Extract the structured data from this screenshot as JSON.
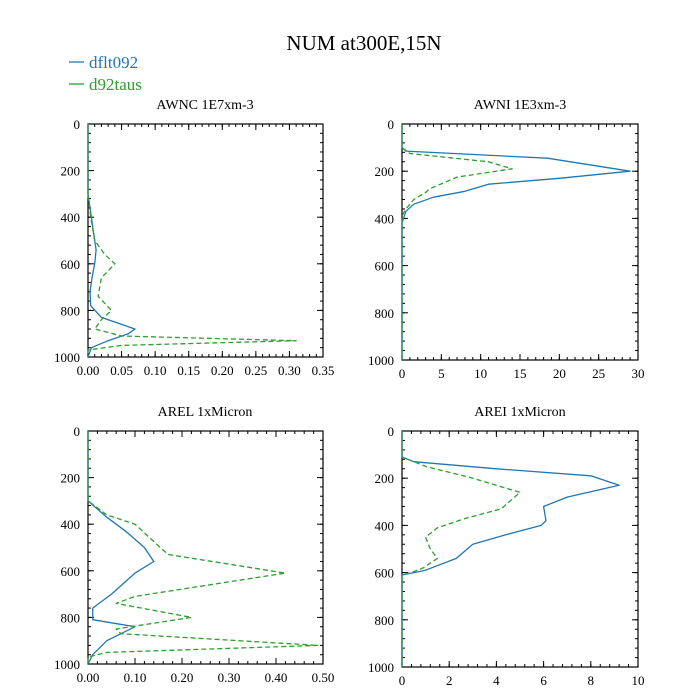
{
  "figure": {
    "title": "NUM at300E,15N",
    "legend": [
      {
        "name": "dflt092",
        "color": "#1f77b4",
        "dash": "solid"
      },
      {
        "name": "d92taus",
        "color": "#2ca02c",
        "dash": "dashed"
      }
    ]
  },
  "chart_data": [
    {
      "type": "line",
      "title": "AWNC  1E7xm-3",
      "xlabel": "",
      "ylabel": "",
      "xlim": [
        0,
        0.35
      ],
      "ylim": [
        0,
        1000
      ],
      "y_inverted": true,
      "xticks": [
        0,
        0.05,
        0.1,
        0.15,
        0.2,
        0.25,
        0.3,
        0.35
      ],
      "xtick_labels": [
        "0.00",
        "0.05",
        "0.10",
        "0.15",
        "0.20",
        "0.25",
        "0.30",
        "0.35"
      ],
      "yticks": [
        0,
        200,
        400,
        600,
        800,
        1000
      ],
      "ytick_labels": [
        "0",
        "200",
        "400",
        "600",
        "800",
        "1000"
      ],
      "series": [
        {
          "name": "dflt092",
          "x": [
            0,
            0,
            0.003,
            0.006,
            0.009,
            0.012,
            0.01,
            0.006,
            0.003,
            0.004,
            0.02,
            0.05,
            0.07,
            0.06,
            0.03,
            0.005,
            0
          ],
          "y": [
            0,
            300,
            360,
            420,
            480,
            540,
            600,
            660,
            720,
            780,
            830,
            860,
            880,
            900,
            930,
            960,
            1000
          ]
        },
        {
          "name": "d92taus",
          "x": [
            0,
            0,
            0.004,
            0.01,
            0.025,
            0.04,
            0.02,
            0.015,
            0.035,
            0.02,
            0.01,
            0.05,
            0.31,
            0.05,
            0,
            0
          ],
          "y": [
            0,
            300,
            400,
            500,
            560,
            600,
            660,
            740,
            800,
            840,
            880,
            910,
            930,
            950,
            970,
            1000
          ]
        }
      ]
    },
    {
      "type": "line",
      "title": "AWNI  1E3xm-3",
      "xlabel": "",
      "ylabel": "",
      "xlim": [
        0,
        30
      ],
      "ylim": [
        0,
        1000
      ],
      "y_inverted": true,
      "xticks": [
        0,
        5,
        10,
        15,
        20,
        25,
        30
      ],
      "xtick_labels": [
        "0",
        "5",
        "10",
        "15",
        "20",
        "25",
        "30"
      ],
      "yticks": [
        0,
        200,
        400,
        600,
        800,
        1000
      ],
      "ytick_labels": [
        "0",
        "200",
        "400",
        "600",
        "800",
        "1000"
      ],
      "series": [
        {
          "name": "dflt092",
          "x": [
            0,
            0,
            0.5,
            18.5,
            29,
            20,
            11,
            8,
            4,
            1.5,
            0.5,
            0,
            0
          ],
          "y": [
            0,
            100,
            115,
            145,
            200,
            230,
            255,
            285,
            310,
            340,
            370,
            420,
            1000
          ]
        },
        {
          "name": "d92taus",
          "x": [
            0,
            0,
            1,
            11,
            14,
            7,
            3.5,
            3,
            1.5,
            0.5,
            0,
            0
          ],
          "y": [
            0,
            100,
            125,
            160,
            190,
            225,
            275,
            290,
            320,
            360,
            390,
            1000
          ]
        }
      ]
    },
    {
      "type": "line",
      "title": "AREL  1xMicron",
      "xlabel": "",
      "ylabel": "",
      "xlim": [
        0,
        0.5
      ],
      "ylim": [
        0,
        1000
      ],
      "y_inverted": true,
      "xticks": [
        0,
        0.1,
        0.2,
        0.3,
        0.4,
        0.5
      ],
      "xtick_labels": [
        "0.00",
        "0.10",
        "0.20",
        "0.30",
        "0.40",
        "0.50"
      ],
      "yticks": [
        0,
        200,
        400,
        600,
        800,
        1000
      ],
      "ytick_labels": [
        "0",
        "200",
        "400",
        "600",
        "800",
        "1000"
      ],
      "series": [
        {
          "name": "dflt092",
          "x": [
            0,
            0,
            0.04,
            0.08,
            0.12,
            0.14,
            0.1,
            0.05,
            0.01,
            0.01,
            0.1,
            0.04,
            0.01,
            0
          ],
          "y": [
            0,
            300,
            370,
            430,
            500,
            560,
            610,
            700,
            760,
            810,
            840,
            900,
            960,
            1000
          ]
        },
        {
          "name": "d92taus",
          "x": [
            0,
            0,
            0.04,
            0.1,
            0.17,
            0.42,
            0.1,
            0.06,
            0.22,
            0.06,
            0.07,
            0.49,
            0.04,
            0,
            0
          ],
          "y": [
            0,
            300,
            360,
            400,
            530,
            610,
            710,
            740,
            800,
            850,
            870,
            920,
            950,
            970,
            1000
          ]
        }
      ]
    },
    {
      "type": "line",
      "title": "AREI  1xMicron",
      "xlabel": "",
      "ylabel": "",
      "xlim": [
        0,
        10
      ],
      "ylim": [
        0,
        1000
      ],
      "y_inverted": true,
      "xticks": [
        0,
        2,
        4,
        6,
        8,
        10
      ],
      "xtick_labels": [
        "0",
        "2",
        "4",
        "6",
        "8",
        "10"
      ],
      "yticks": [
        0,
        200,
        400,
        600,
        800,
        1000
      ],
      "ytick_labels": [
        "0",
        "200",
        "400",
        "600",
        "800",
        "1000"
      ],
      "series": [
        {
          "name": "dflt092",
          "x": [
            0,
            0,
            0.5,
            4,
            8,
            9.2,
            7,
            6,
            6.1,
            5.9,
            4.4,
            3,
            2.3,
            1,
            0,
            0
          ],
          "y": [
            0,
            110,
            130,
            160,
            190,
            230,
            280,
            320,
            380,
            400,
            440,
            480,
            540,
            590,
            610,
            1000
          ]
        },
        {
          "name": "d92taus",
          "x": [
            0,
            0,
            1,
            3,
            5,
            4.2,
            2.7,
            1.5,
            1,
            1.2,
            1.5,
            0.9,
            0.4,
            0,
            0
          ],
          "y": [
            0,
            110,
            150,
            200,
            260,
            330,
            370,
            410,
            450,
            500,
            540,
            580,
            600,
            610,
            1000
          ]
        }
      ]
    }
  ]
}
